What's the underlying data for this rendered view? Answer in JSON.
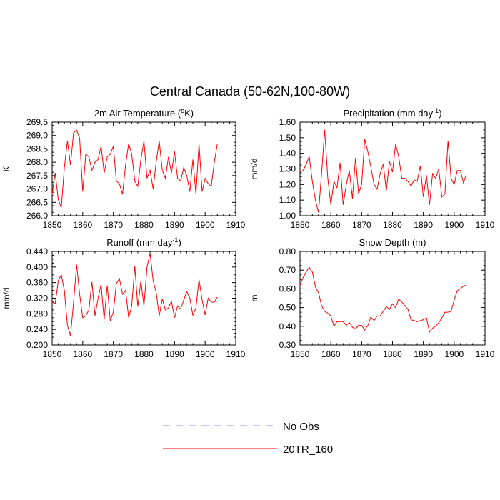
{
  "title": "Central Canada (50-62N,100-80W)",
  "colors": {
    "model": "#ff0000",
    "obs": "#8888ff"
  },
  "legend": [
    {
      "label": "No Obs",
      "style": "dashed",
      "color": "#8888ff"
    },
    {
      "label": "20TR_160",
      "style": "solid",
      "color": "#ff0000"
    }
  ],
  "chart_data": [
    {
      "id": "temp",
      "type": "line",
      "title_pre": "2m Air Temperature (",
      "title_sup": "o",
      "title_post": "K)",
      "ylabel": "K",
      "xlim": [
        1850,
        1910
      ],
      "ylim": [
        266.0,
        269.5
      ],
      "xticks": [
        1850,
        1860,
        1870,
        1880,
        1890,
        1900,
        1910
      ],
      "yticks": [
        "266.0",
        "266.5",
        "267.0",
        "267.5",
        "268.0",
        "268.5",
        "269.0",
        "269.5"
      ],
      "series": [
        {
          "name": "20TR_160",
          "x": [
            1850,
            1851,
            1852,
            1853,
            1854,
            1855,
            1856,
            1857,
            1858,
            1859,
            1860,
            1861,
            1862,
            1863,
            1864,
            1865,
            1866,
            1867,
            1868,
            1869,
            1870,
            1871,
            1872,
            1873,
            1874,
            1875,
            1876,
            1877,
            1878,
            1879,
            1880,
            1881,
            1882,
            1883,
            1884,
            1885,
            1886,
            1887,
            1888,
            1889,
            1890,
            1891,
            1892,
            1893,
            1894,
            1895,
            1896,
            1897,
            1898,
            1899,
            1900,
            1901,
            1902,
            1903,
            1904
          ],
          "values": [
            266.8,
            267.6,
            266.6,
            266.3,
            267.8,
            268.8,
            267.9,
            269.1,
            269.2,
            268.9,
            266.9,
            268.3,
            268.2,
            267.7,
            268.0,
            268.1,
            268.6,
            267.6,
            268.2,
            268.3,
            268.6,
            267.3,
            267.2,
            266.8,
            267.9,
            268.7,
            268.3,
            267.3,
            267.1,
            268.1,
            268.8,
            267.4,
            267.7,
            267.0,
            268.0,
            268.8,
            267.7,
            267.4,
            268.2,
            267.6,
            268.4,
            267.4,
            267.3,
            267.8,
            267.5,
            266.9,
            268.1,
            266.8,
            268.7,
            266.9,
            267.4,
            267.2,
            267.1,
            268.0,
            268.7
          ]
        }
      ]
    },
    {
      "id": "precip",
      "type": "line",
      "title_pre": "Precipitation (mm day",
      "title_sup": "-1",
      "title_post": ")",
      "ylabel": "mm/d",
      "xlim": [
        1850,
        1910
      ],
      "ylim": [
        1.0,
        1.6
      ],
      "xticks": [
        1850,
        1860,
        1870,
        1880,
        1890,
        1900,
        1910
      ],
      "yticks": [
        "1.00",
        "1.10",
        "1.20",
        "1.30",
        "1.40",
        "1.50",
        "1.60"
      ],
      "series": [
        {
          "name": "20TR_160",
          "x": [
            1850,
            1851,
            1852,
            1853,
            1854,
            1855,
            1856,
            1857,
            1858,
            1859,
            1860,
            1861,
            1862,
            1863,
            1864,
            1865,
            1866,
            1867,
            1868,
            1869,
            1870,
            1871,
            1872,
            1873,
            1874,
            1875,
            1876,
            1877,
            1878,
            1879,
            1880,
            1881,
            1882,
            1883,
            1884,
            1885,
            1886,
            1887,
            1888,
            1889,
            1890,
            1891,
            1892,
            1893,
            1894,
            1895,
            1896,
            1897,
            1898,
            1899,
            1900,
            1901,
            1902,
            1903,
            1904
          ],
          "values": [
            1.28,
            1.29,
            1.33,
            1.38,
            1.22,
            1.1,
            1.02,
            1.27,
            1.55,
            1.24,
            1.07,
            1.22,
            1.18,
            1.34,
            1.07,
            1.2,
            1.29,
            1.11,
            1.37,
            1.14,
            1.2,
            1.49,
            1.41,
            1.31,
            1.2,
            1.17,
            1.27,
            1.33,
            1.16,
            1.35,
            1.28,
            1.46,
            1.38,
            1.24,
            1.24,
            1.22,
            1.19,
            1.23,
            1.22,
            1.32,
            1.12,
            1.26,
            1.07,
            1.27,
            1.24,
            1.3,
            1.12,
            1.14,
            1.48,
            1.24,
            1.2,
            1.29,
            1.29,
            1.21,
            1.27
          ]
        }
      ]
    },
    {
      "id": "runoff",
      "type": "line",
      "title_pre": "Runoff (mm day",
      "title_sup": "-1",
      "title_post": ")",
      "ylabel": "mm/d",
      "xlim": [
        1850,
        1910
      ],
      "ylim": [
        0.2,
        0.44
      ],
      "xticks": [
        1850,
        1860,
        1870,
        1880,
        1890,
        1900,
        1910
      ],
      "yticks": [
        "0.200",
        "0.240",
        "0.280",
        "0.320",
        "0.360",
        "0.400",
        "0.440"
      ],
      "series": [
        {
          "name": "20TR_160",
          "x": [
            1850,
            1851,
            1852,
            1853,
            1854,
            1855,
            1856,
            1857,
            1858,
            1859,
            1860,
            1861,
            1862,
            1863,
            1864,
            1865,
            1866,
            1867,
            1868,
            1869,
            1870,
            1871,
            1872,
            1873,
            1874,
            1875,
            1876,
            1877,
            1878,
            1879,
            1880,
            1881,
            1882,
            1883,
            1884,
            1885,
            1886,
            1887,
            1888,
            1889,
            1890,
            1891,
            1892,
            1893,
            1894,
            1895,
            1896,
            1897,
            1898,
            1899,
            1900,
            1901,
            1902,
            1903,
            1904
          ],
          "values": [
            0.31,
            0.306,
            0.365,
            0.38,
            0.34,
            0.25,
            0.224,
            0.31,
            0.406,
            0.33,
            0.27,
            0.275,
            0.29,
            0.362,
            0.275,
            0.32,
            0.355,
            0.265,
            0.353,
            0.262,
            0.285,
            0.358,
            0.37,
            0.33,
            0.34,
            0.27,
            0.3,
            0.402,
            0.298,
            0.364,
            0.3,
            0.4,
            0.435,
            0.365,
            0.335,
            0.275,
            0.318,
            0.29,
            0.295,
            0.312,
            0.27,
            0.3,
            0.292,
            0.315,
            0.337,
            0.32,
            0.276,
            0.295,
            0.368,
            0.316,
            0.277,
            0.32,
            0.31,
            0.31,
            0.323
          ]
        }
      ]
    },
    {
      "id": "snow",
      "type": "line",
      "title_pre": "Snow Depth (m)",
      "title_sup": "",
      "title_post": "",
      "ylabel": "m",
      "xlim": [
        1850,
        1910
      ],
      "ylim": [
        0.3,
        0.8
      ],
      "xticks": [
        1850,
        1860,
        1870,
        1880,
        1890,
        1900,
        1910
      ],
      "yticks": [
        "0.30",
        "0.40",
        "0.50",
        "0.60",
        "0.70",
        "0.80"
      ],
      "series": [
        {
          "name": "20TR_160",
          "x": [
            1850,
            1851,
            1852,
            1853,
            1854,
            1855,
            1856,
            1857,
            1858,
            1859,
            1860,
            1861,
            1862,
            1863,
            1864,
            1865,
            1866,
            1867,
            1868,
            1869,
            1870,
            1871,
            1872,
            1873,
            1874,
            1875,
            1876,
            1877,
            1878,
            1879,
            1880,
            1881,
            1882,
            1883,
            1884,
            1885,
            1886,
            1887,
            1888,
            1889,
            1890,
            1891,
            1892,
            1893,
            1894,
            1895,
            1896,
            1897,
            1898,
            1899,
            1900,
            1901,
            1902,
            1903,
            1904
          ],
          "values": [
            0.62,
            0.66,
            0.69,
            0.715,
            0.69,
            0.61,
            0.58,
            0.51,
            0.48,
            0.47,
            0.455,
            0.4,
            0.425,
            0.425,
            0.425,
            0.405,
            0.42,
            0.395,
            0.385,
            0.405,
            0.405,
            0.38,
            0.405,
            0.45,
            0.43,
            0.455,
            0.455,
            0.48,
            0.505,
            0.49,
            0.52,
            0.5,
            0.545,
            0.53,
            0.51,
            0.49,
            0.435,
            0.43,
            0.425,
            0.43,
            0.435,
            0.445,
            0.37,
            0.39,
            0.4,
            0.42,
            0.445,
            0.475,
            0.475,
            0.48,
            0.54,
            0.59,
            0.6,
            0.615,
            0.62
          ]
        }
      ]
    }
  ]
}
